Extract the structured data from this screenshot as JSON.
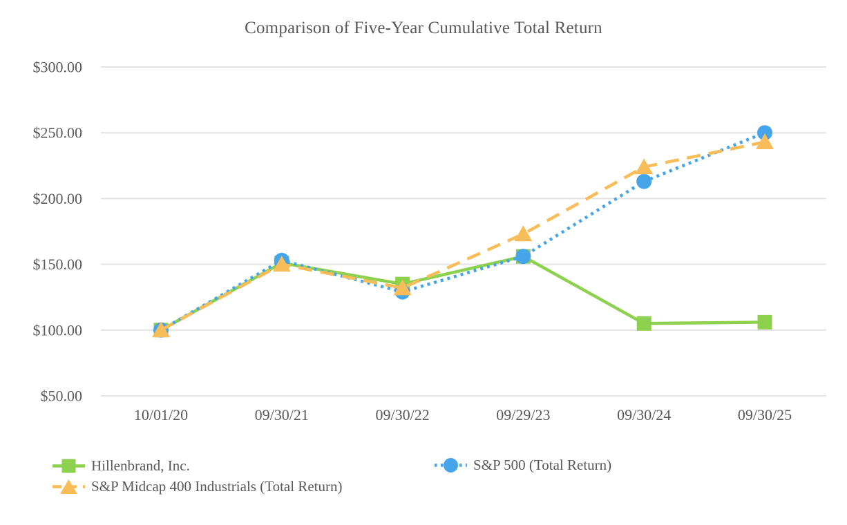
{
  "page": {
    "background": "#FFFFFF"
  },
  "chart_data": {
    "type": "line",
    "title": "Comparison of Five-Year Cumulative Total Return",
    "categories": [
      "10/01/20",
      "09/30/21",
      "09/30/22",
      "09/29/23",
      "09/30/24",
      "09/30/25"
    ],
    "series": [
      {
        "name": "Hillenbrand, Inc.",
        "color": "#8DD14E",
        "line_style": "solid",
        "marker": "square",
        "values": [
          100.0,
          151.0,
          135.0,
          156.0,
          105.0,
          106.0
        ]
      },
      {
        "name": "S&P 500 (Total Return)",
        "color": "#45A4EA",
        "line_style": "dotted",
        "marker": "circle",
        "values": [
          100.0,
          153.0,
          129.0,
          156.0,
          213.0,
          250.0
        ]
      },
      {
        "name": "S&P Midcap 400 Industrials (Total Return)",
        "color": "#F8BD58",
        "line_style": "dashed",
        "marker": "triangle",
        "values": [
          100.0,
          150.0,
          132.0,
          173.0,
          224.0,
          243.0
        ]
      }
    ],
    "y_axis": {
      "min": 50,
      "max": 300,
      "step": 50,
      "tick_labels": [
        "$50.00",
        "$100.00",
        "$150.00",
        "$200.00",
        "$250.00",
        "$300.00"
      ]
    },
    "x_axis": {
      "tick_labels": [
        "10/01/20",
        "09/30/21",
        "09/30/22",
        "09/29/23",
        "09/30/24",
        "09/30/25"
      ]
    },
    "grid": true,
    "legend_position": "bottom",
    "colors": {
      "grid": "#E3E3E3",
      "text": "#595959"
    }
  }
}
